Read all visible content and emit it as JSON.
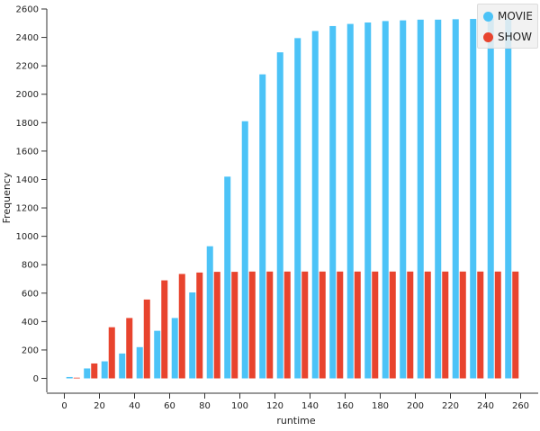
{
  "chart_data": {
    "type": "bar",
    "xlabel": "runtime",
    "ylabel": "Frequency",
    "xlim": [
      -10,
      270
    ],
    "ylim": [
      -60,
      2600
    ],
    "x_ticks": [
      0,
      20,
      40,
      60,
      80,
      100,
      120,
      140,
      160,
      180,
      200,
      220,
      240,
      260
    ],
    "y_ticks": [
      0,
      200,
      400,
      600,
      800,
      1000,
      1200,
      1400,
      1600,
      1800,
      2000,
      2200,
      2400,
      2600
    ],
    "x": [
      5,
      15,
      25,
      35,
      45,
      55,
      65,
      75,
      85,
      95,
      105,
      115,
      125,
      135,
      145,
      155,
      165,
      175,
      185,
      195,
      205,
      215,
      225,
      235,
      245,
      255
    ],
    "series": [
      {
        "name": "MOVIE",
        "color": "#4cc3f7",
        "values": [
          10,
          70,
          120,
          175,
          220,
          335,
          425,
          605,
          930,
          1420,
          1810,
          2140,
          2295,
          2395,
          2445,
          2480,
          2495,
          2505,
          2515,
          2520,
          2525,
          2525,
          2528,
          2530,
          2530,
          2530
        ]
      },
      {
        "name": "SHOW",
        "color": "#e8442e",
        "values": [
          5,
          105,
          360,
          425,
          555,
          690,
          735,
          745,
          750,
          750,
          752,
          752,
          752,
          752,
          752,
          752,
          752,
          752,
          752,
          752,
          752,
          752,
          752,
          752,
          752,
          752
        ]
      }
    ],
    "grid": false,
    "legend": "top-right"
  }
}
